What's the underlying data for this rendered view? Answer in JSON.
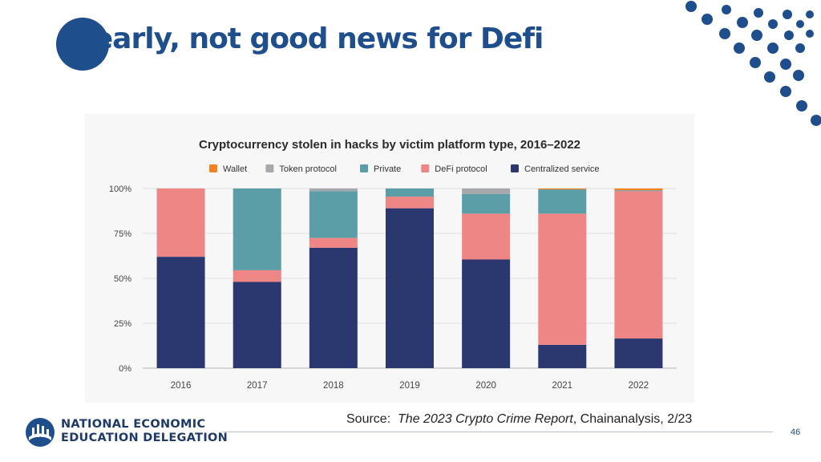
{
  "slide": {
    "title": "Clearly, not good news for Defi",
    "source_prefix": "Source:",
    "source_title": "The 2023 Crypto Crime Report",
    "source_suffix": ", Chainanalysis, 2/23",
    "page_number": "46",
    "logo_line1": "NATIONAL ECONOMIC",
    "logo_line2": "EDUCATION DELEGATION"
  },
  "colors": {
    "brand_blue": "#1f4e8c",
    "centralized": "#2b3870",
    "defi": "#ef8686",
    "private": "#5b9ea8",
    "token": "#a7a8ab",
    "wallet": "#f5821f"
  },
  "chart_data": {
    "type": "bar",
    "stacked": true,
    "title": "Cryptocurrency stolen in hacks by victim platform type, 2016–2022",
    "xlabel": "",
    "ylabel": "",
    "ylim": [
      0,
      100
    ],
    "yticks": [
      "0%",
      "25%",
      "50%",
      "75%",
      "100%"
    ],
    "categories": [
      "2016",
      "2017",
      "2018",
      "2019",
      "2020",
      "2021",
      "2022"
    ],
    "series": [
      {
        "name": "Centralized service",
        "color": "#2b3870",
        "values": [
          62,
          48,
          67,
          89,
          60.5,
          13,
          16.5
        ]
      },
      {
        "name": "DeFi protocol",
        "color": "#ef8686",
        "values": [
          38,
          6.5,
          5.5,
          6.5,
          25.5,
          73,
          82
        ]
      },
      {
        "name": "Private",
        "color": "#5b9ea8",
        "values": [
          0,
          45.5,
          26,
          4.5,
          11,
          13.5,
          0.5
        ]
      },
      {
        "name": "Token protocol",
        "color": "#a7a8ab",
        "values": [
          0,
          0,
          1.5,
          0,
          3,
          0,
          0
        ]
      },
      {
        "name": "Wallet",
        "color": "#f5821f",
        "values": [
          0,
          0,
          0,
          0,
          0,
          0.5,
          1
        ]
      }
    ],
    "legend": [
      "Wallet",
      "Token protocol",
      "Private",
      "DeFi protocol",
      "Centralized service"
    ],
    "legend_position": "top",
    "grid": true
  }
}
